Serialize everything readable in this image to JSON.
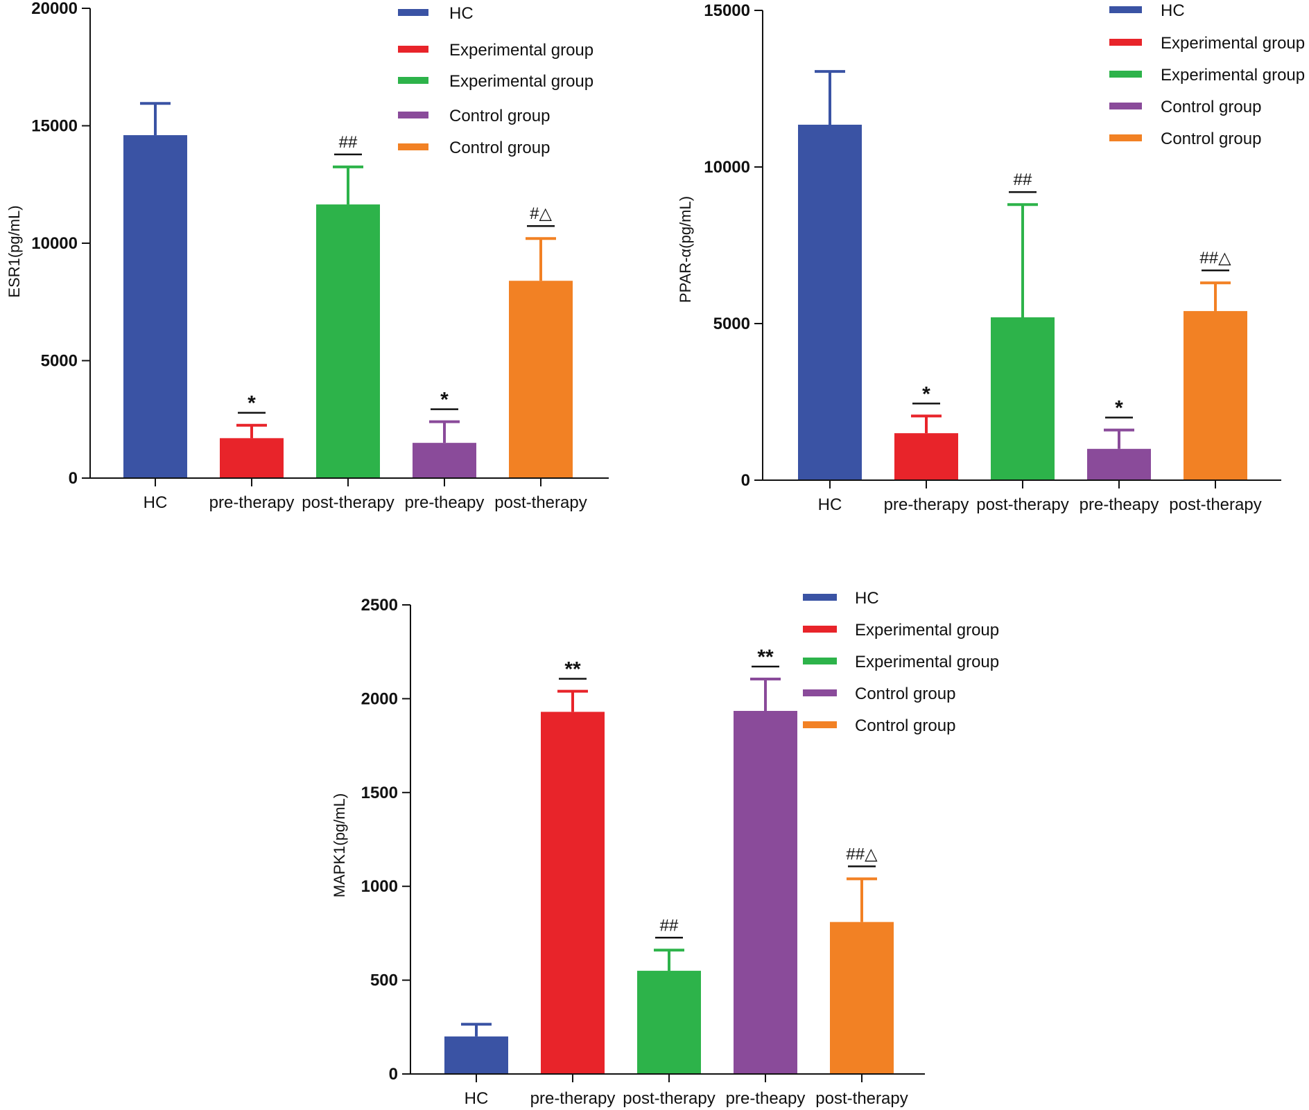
{
  "chart_data": [
    {
      "type": "bar",
      "id": "esr1",
      "ylabel": "ESR1(pg/mL)",
      "ylim": [
        0,
        20000
      ],
      "yticks": [
        0,
        5000,
        10000,
        15000,
        20000
      ],
      "categories": [
        "HC",
        "pre-therapy",
        "post-therapy",
        "pre-theapy",
        "post-therapy"
      ],
      "values": [
        14600,
        1700,
        11650,
        1500,
        8400
      ],
      "errors": [
        1350,
        550,
        1600,
        900,
        1800
      ],
      "colors": [
        "#3a53a4",
        "#e8242a",
        "#2db34a",
        "#8a4b9a",
        "#f28124"
      ],
      "significance": [
        {
          "index": 1,
          "text": "*"
        },
        {
          "index": 2,
          "text": "##"
        },
        {
          "index": 3,
          "text": "*"
        },
        {
          "index": 4,
          "text": "#△"
        }
      ],
      "legend": [
        "HC",
        "Experimental  group",
        "Experimental  group",
        "Control group",
        "Control group"
      ]
    },
    {
      "type": "bar",
      "id": "ppar",
      "ylabel": "PPAR-α(pg/mL)",
      "ylim": [
        0,
        15000
      ],
      "yticks": [
        0,
        5000,
        10000,
        15000
      ],
      "categories": [
        "HC",
        "pre-therapy",
        "post-therapy",
        "pre-theapy",
        "post-therapy"
      ],
      "values": [
        11350,
        1500,
        5200,
        1000,
        5400
      ],
      "errors": [
        1700,
        550,
        3600,
        600,
        900
      ],
      "colors": [
        "#3a53a4",
        "#e8242a",
        "#2db34a",
        "#8a4b9a",
        "#f28124"
      ],
      "significance": [
        {
          "index": 1,
          "text": "*"
        },
        {
          "index": 2,
          "text": "##"
        },
        {
          "index": 3,
          "text": "*"
        },
        {
          "index": 4,
          "text": "##△"
        }
      ],
      "legend": [
        "HC",
        "Experimental  group",
        "Experimental  group",
        "Control group",
        "Control group"
      ]
    },
    {
      "type": "bar",
      "id": "mapk1",
      "ylabel": "MAPK1(pg/mL)",
      "ylim": [
        0,
        2500
      ],
      "yticks": [
        0,
        500,
        1000,
        1500,
        2000,
        2500
      ],
      "categories": [
        "HC",
        "pre-therapy",
        "post-therapy",
        "pre-theapy",
        "post-therapy"
      ],
      "values": [
        200,
        1930,
        550,
        1935,
        810
      ],
      "errors": [
        65,
        110,
        110,
        170,
        230
      ],
      "colors": [
        "#3a53a4",
        "#e8242a",
        "#2db34a",
        "#8a4b9a",
        "#f28124"
      ],
      "significance": [
        {
          "index": 1,
          "text": "**"
        },
        {
          "index": 2,
          "text": "##"
        },
        {
          "index": 3,
          "text": "**"
        },
        {
          "index": 4,
          "text": "##△"
        }
      ],
      "legend": [
        "HC",
        "Experimental  group",
        "Experimental  group",
        "Control group",
        "Control group"
      ]
    }
  ]
}
